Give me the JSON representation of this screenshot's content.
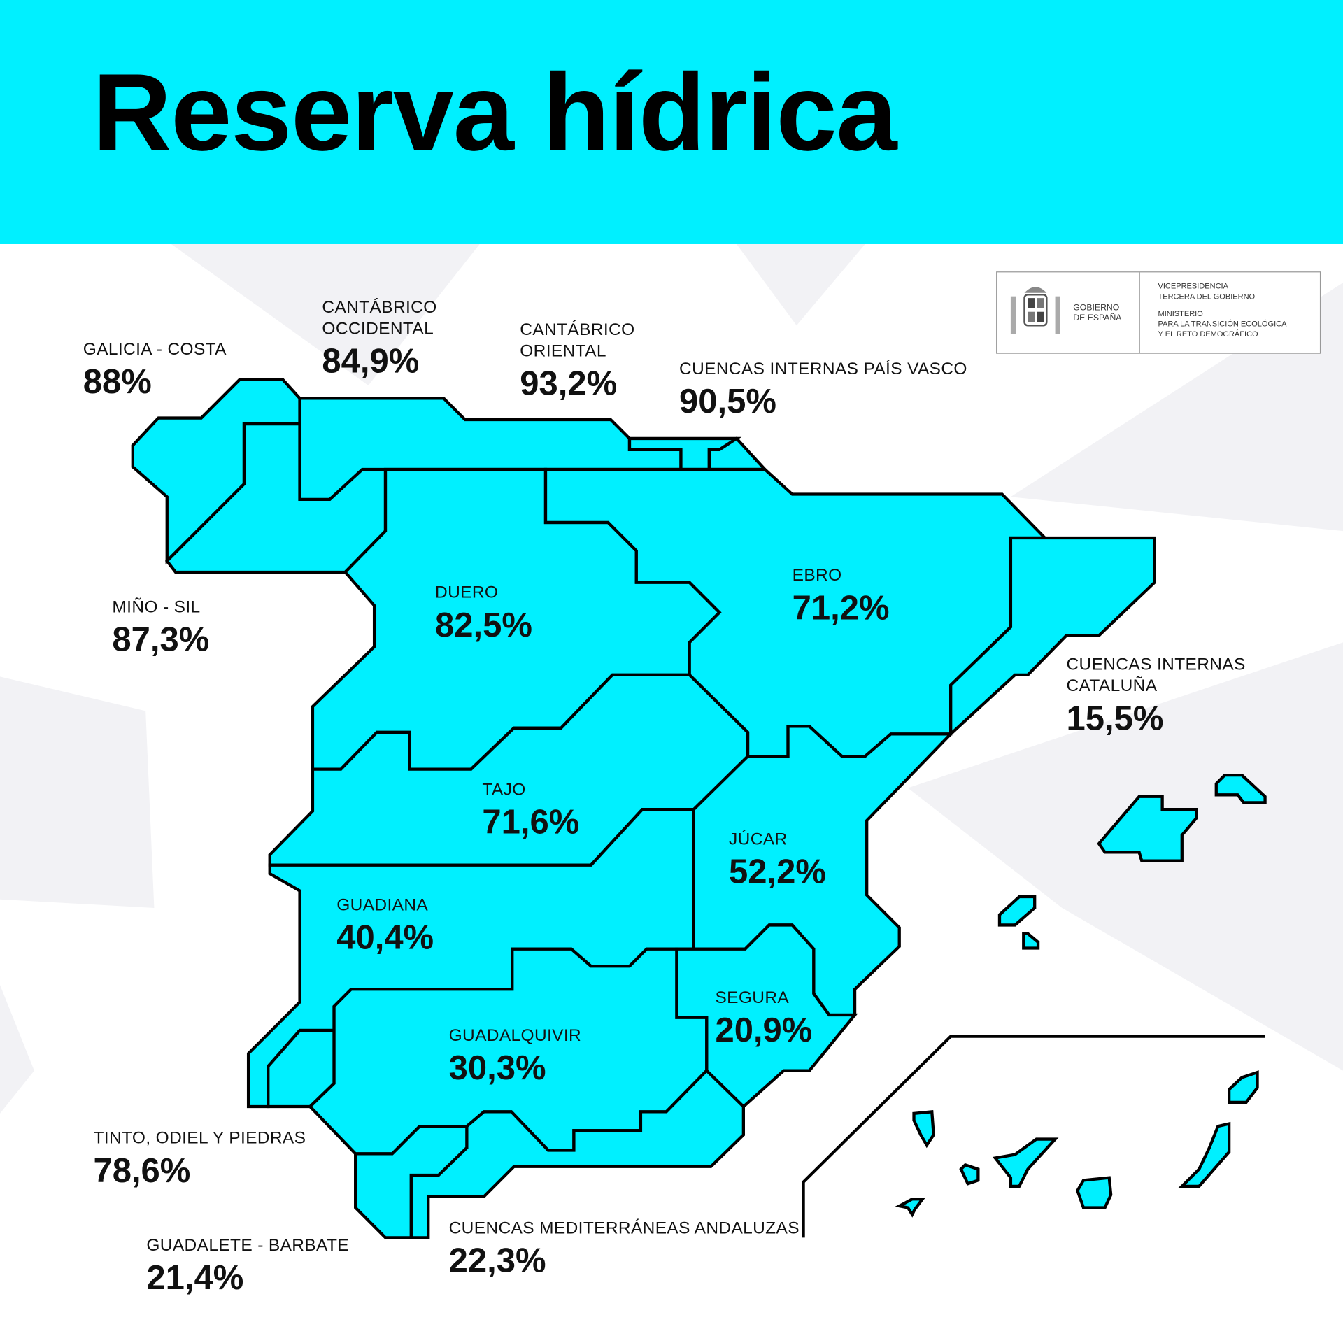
{
  "header": {
    "title": "Reserva hídrica",
    "background_color": "#00f0ff"
  },
  "logo": {
    "government": "GOBIERNO\nDE ESPAÑA",
    "vicepresidency": "VICEPRESIDENCIA\nTERCERA DEL GOBIERNO",
    "ministry": "MINISTERIO\nPARA LA TRANSICIÓN ECOLÓGICA\nY EL RETO DEMOGRÁFICO",
    "emblem": "coat-of-arms-of-spain"
  },
  "map": {
    "fill_color": "#00f0ff",
    "stroke_color": "#000000"
  },
  "regions": [
    {
      "name": "GALICIA - COSTA",
      "value": "88%"
    },
    {
      "name": "CANTÁBRICO\nOCCIDENTAL",
      "value": "84,9%"
    },
    {
      "name": "CANTÁBRICO\nORIENTAL",
      "value": "93,2%"
    },
    {
      "name": "CUENCAS INTERNAS PAÍS VASCO",
      "value": "90,5%"
    },
    {
      "name": "MIÑO - SIL",
      "value": "87,3%"
    },
    {
      "name": "DUERO",
      "value": "82,5%"
    },
    {
      "name": "EBRO",
      "value": "71,2%"
    },
    {
      "name": "CUENCAS INTERNAS\nCATALUÑA",
      "value": "15,5%"
    },
    {
      "name": "TAJO",
      "value": "71,6%"
    },
    {
      "name": "JÚCAR",
      "value": "52,2%"
    },
    {
      "name": "GUADIANA",
      "value": "40,4%"
    },
    {
      "name": "SEGURA",
      "value": "20,9%"
    },
    {
      "name": "GUADALQUIVIR",
      "value": "30,3%"
    },
    {
      "name": "TINTO, ODIEL Y PIEDRAS",
      "value": "78,6%"
    },
    {
      "name": "GUADALETE - BARBATE",
      "value": "21,4%"
    },
    {
      "name": "CUENCAS MEDITERRÁNEAS ANDALUZAS",
      "value": "22,3%"
    }
  ]
}
